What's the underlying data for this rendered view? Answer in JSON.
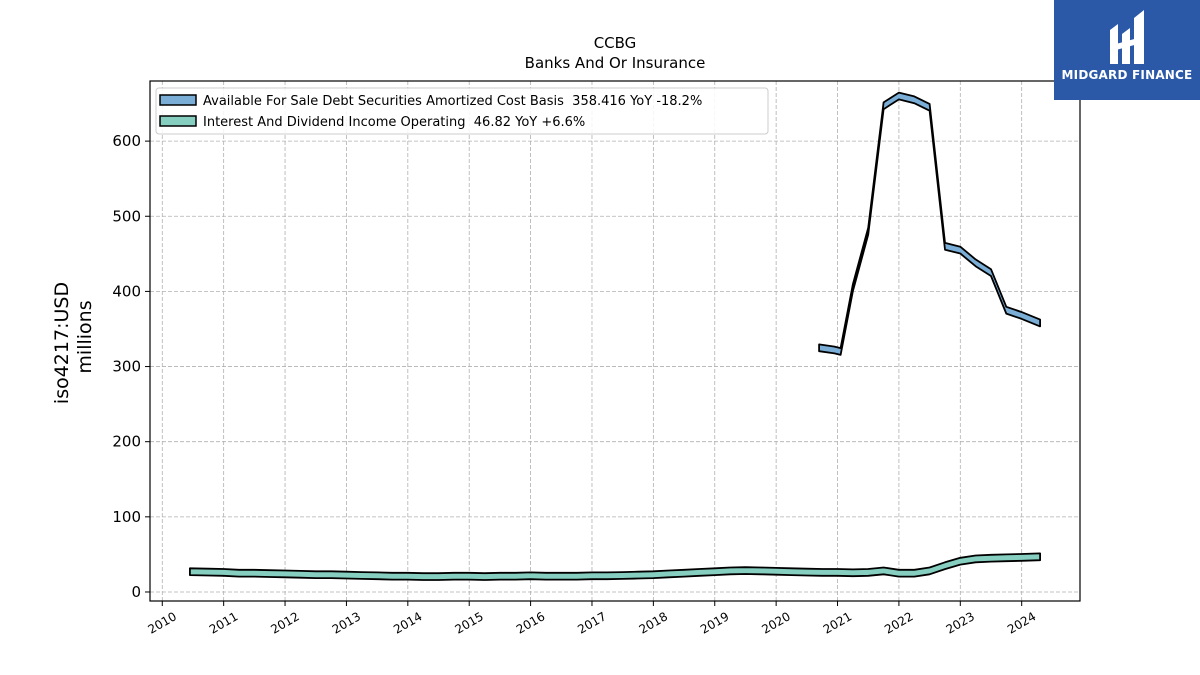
{
  "chart_data": {
    "type": "line",
    "title": "CCBG",
    "subtitle": "Banks And Or Insurance",
    "ylabel": "iso4217:USD",
    "ylabel2": "millions",
    "xlabel": "",
    "xlim": [
      2009.8,
      2024.95
    ],
    "ylim": [
      -12,
      680
    ],
    "x_ticks": [
      "2010",
      "2011",
      "2012",
      "2013",
      "2014",
      "2015",
      "2016",
      "2017",
      "2018",
      "2019",
      "2020",
      "2021",
      "2022",
      "2023",
      "2024"
    ],
    "y_ticks": [
      0,
      100,
      200,
      300,
      400,
      500,
      600
    ],
    "grid": true,
    "legend_position": "top-left",
    "series": [
      {
        "name": "Available For Sale Debt Securities Amortized Cost Basis  358.416 YoY -18.2%",
        "color": "#7aaed6",
        "x": [
          2020.7,
          2020.95,
          2021.05,
          2021.25,
          2021.5,
          2021.75,
          2022.0,
          2022.25,
          2022.5,
          2022.75,
          2023.0,
          2023.25,
          2023.5,
          2023.75,
          2024.0,
          2024.3
        ],
        "y": [
          325,
          322,
          320,
          405,
          480,
          647,
          660,
          655,
          645,
          460,
          455,
          438,
          425,
          375,
          368,
          358
        ]
      },
      {
        "name": "Interest And Dividend Income Operating  46.82 YoY +6.6%",
        "color": "#86cfc0",
        "x": [
          2010.45,
          2010.75,
          2011.0,
          2011.25,
          2011.5,
          2011.75,
          2012.0,
          2012.25,
          2012.5,
          2012.75,
          2013.0,
          2013.25,
          2013.5,
          2013.75,
          2014.0,
          2014.25,
          2014.5,
          2014.75,
          2015.0,
          2015.25,
          2015.5,
          2015.75,
          2016.0,
          2016.25,
          2016.5,
          2016.75,
          2017.0,
          2017.25,
          2017.5,
          2017.75,
          2018.0,
          2018.25,
          2018.5,
          2018.75,
          2019.0,
          2019.25,
          2019.5,
          2019.75,
          2020.0,
          2020.25,
          2020.5,
          2020.75,
          2021.0,
          2021.25,
          2021.5,
          2021.75,
          2022.0,
          2022.25,
          2022.5,
          2022.75,
          2023.0,
          2023.25,
          2023.5,
          2023.75,
          2024.0,
          2024.3
        ],
        "y": [
          27,
          26.5,
          26,
          25,
          25,
          24.5,
          24,
          23.5,
          23,
          23,
          22.5,
          22,
          21.5,
          21,
          21,
          20.5,
          20.5,
          21,
          21,
          20.5,
          21,
          21,
          21.5,
          21,
          21,
          21,
          21.5,
          21.5,
          22,
          22.5,
          23,
          24,
          25,
          26,
          27,
          28,
          28.5,
          28,
          27.5,
          27,
          26.5,
          26,
          26,
          25.5,
          26,
          28,
          25,
          25,
          28,
          35,
          41,
          44,
          45,
          45.5,
          46,
          46.8
        ]
      }
    ]
  },
  "logo": {
    "text": "MIDGARD FINANCE",
    "bg_color": "#2b59a8"
  }
}
